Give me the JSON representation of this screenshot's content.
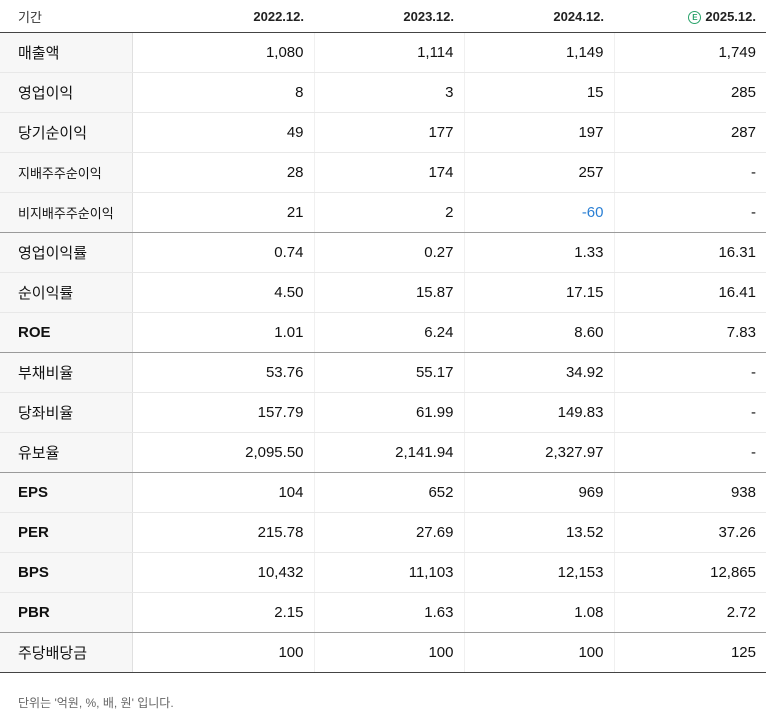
{
  "header": {
    "period_label": "기간",
    "periods": [
      "2022.12.",
      "2023.12.",
      "2024.12.",
      "2025.12."
    ],
    "estimate_badge": "E"
  },
  "rows": [
    {
      "label": "매출액",
      "values": [
        "1,080",
        "1,114",
        "1,149",
        "1,749"
      ]
    },
    {
      "label": "영업이익",
      "values": [
        "8",
        "3",
        "15",
        "285"
      ]
    },
    {
      "label": "당기순이익",
      "values": [
        "49",
        "177",
        "197",
        "287"
      ]
    },
    {
      "label": "지배주주순이익",
      "values": [
        "28",
        "174",
        "257",
        "-"
      ]
    },
    {
      "label": "비지배주주순이익",
      "values": [
        "21",
        "2",
        "-60",
        "-"
      ]
    },
    {
      "label": "영업이익률",
      "values": [
        "0.74",
        "0.27",
        "1.33",
        "16.31"
      ]
    },
    {
      "label": "순이익률",
      "values": [
        "4.50",
        "15.87",
        "17.15",
        "16.41"
      ]
    },
    {
      "label": "ROE",
      "values": [
        "1.01",
        "6.24",
        "8.60",
        "7.83"
      ]
    },
    {
      "label": "부채비율",
      "values": [
        "53.76",
        "55.17",
        "34.92",
        "-"
      ]
    },
    {
      "label": "당좌비율",
      "values": [
        "157.79",
        "61.99",
        "149.83",
        "-"
      ]
    },
    {
      "label": "유보율",
      "values": [
        "2,095.50",
        "2,141.94",
        "2,327.97",
        "-"
      ]
    },
    {
      "label": "EPS",
      "values": [
        "104",
        "652",
        "969",
        "938"
      ]
    },
    {
      "label": "PER",
      "values": [
        "215.78",
        "27.69",
        "13.52",
        "37.26"
      ]
    },
    {
      "label": "BPS",
      "values": [
        "10,432",
        "11,103",
        "12,153",
        "12,865"
      ]
    },
    {
      "label": "PBR",
      "values": [
        "2.15",
        "1.63",
        "1.08",
        "2.72"
      ]
    },
    {
      "label": "주당배당금",
      "values": [
        "100",
        "100",
        "100",
        "125"
      ]
    }
  ],
  "colors": {
    "negative_value": "#2a7fd4",
    "estimate_badge": "#2aa36b",
    "label_background": "#f7f7f7"
  },
  "footnote": "단위는 '억원, %, 배, 원' 입니다."
}
